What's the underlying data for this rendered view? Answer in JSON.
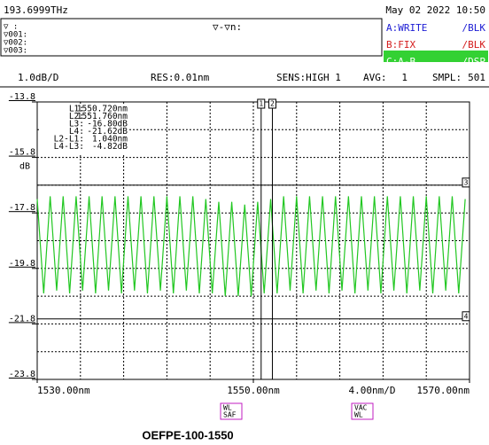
{
  "header": {
    "frequency": "193.6999THz",
    "datetime": "May 02 2022 10:50",
    "marker_rows": [
      "▽  :",
      "▽001:",
      "▽002:",
      "▽003:"
    ],
    "delta": "▽-▽n:",
    "traces": [
      {
        "name": "A:WRITE",
        "mode": "/BLK"
      },
      {
        "name": "B:FIX",
        "mode": "/BLK"
      },
      {
        "name": "C:A-B",
        "mode": "/DSP"
      }
    ],
    "settings": [
      "1.0dB/D",
      "RES:0.01nm",
      "SENS:HIGH 1",
      "AVG:",
      "1",
      "SMPL:",
      "501"
    ]
  },
  "chart_data": {
    "type": "line",
    "color": "#22c722",
    "x": [
      1530,
      1530.6,
      1531.2,
      1531.8,
      1532.4,
      1533,
      1533.6,
      1534.2,
      1534.8,
      1535.4,
      1536,
      1536.6,
      1537.2,
      1537.8,
      1538.4,
      1539,
      1539.6,
      1540.2,
      1540.8,
      1541.4,
      1542,
      1542.6,
      1543.2,
      1543.8,
      1544.4,
      1545,
      1545.6,
      1546.2,
      1546.8,
      1547.4,
      1548,
      1548.6,
      1549.2,
      1549.8,
      1550.4,
      1551,
      1551.6,
      1552.2,
      1552.8,
      1553.4,
      1554,
      1554.6,
      1555.2,
      1555.8,
      1556.4,
      1557,
      1557.6,
      1558.2,
      1558.8,
      1559.4,
      1560,
      1560.6,
      1561.2,
      1561.8,
      1562.4,
      1563,
      1563.6,
      1564.2,
      1564.8,
      1565.4,
      1566,
      1566.6,
      1567.2,
      1567.8,
      1568.4,
      1569,
      1569.6
    ],
    "values": [
      -17.3,
      -20.7,
      -17.2,
      -20.6,
      -17.2,
      -20.7,
      -17.2,
      -20.6,
      -17.2,
      -20.7,
      -17.2,
      -20.6,
      -17.2,
      -20.7,
      -17.2,
      -20.6,
      -17.2,
      -20.7,
      -17.2,
      -20.6,
      -17.2,
      -20.7,
      -17.2,
      -20.6,
      -17.2,
      -20.7,
      -17.3,
      -20.7,
      -17.4,
      -20.8,
      -17.4,
      -20.8,
      -17.5,
      -20.8,
      -17.4,
      -20.7,
      -17.3,
      -20.7,
      -17.2,
      -20.6,
      -17.2,
      -20.7,
      -17.2,
      -20.6,
      -17.2,
      -20.7,
      -17.2,
      -20.6,
      -17.2,
      -20.7,
      -17.2,
      -20.6,
      -17.2,
      -20.7,
      -17.2,
      -20.6,
      -17.2,
      -20.7,
      -17.2,
      -20.6,
      -17.2,
      -20.7,
      -17.2,
      -20.6,
      -17.2,
      -20.7,
      -17.3
    ],
    "xlim": [
      1530,
      1570
    ],
    "ylim": [
      -23.8,
      -13.8
    ],
    "xticks": [
      {
        "value": 1530,
        "label": "1530.00nm"
      },
      {
        "value": 1550,
        "label": "1550.00nm"
      },
      {
        "value": 1570,
        "label": "1570.00nm"
      }
    ],
    "xgrid": [
      1534,
      1538,
      1542,
      1546,
      1550,
      1554,
      1558,
      1562,
      1566
    ],
    "yticks": [
      -13.8,
      -15.8,
      -17.8,
      -19.8,
      -21.8,
      -23.8
    ],
    "ygrid": [
      -14.8,
      -15.8,
      -16.8,
      -17.8,
      -18.8,
      -19.8,
      -20.8,
      -21.8,
      -22.8
    ],
    "y_unit": "dB",
    "x_scale": "4.00nm/D",
    "markers": [
      {
        "label": "1",
        "x": 1550.72
      },
      {
        "label": "2",
        "x": 1551.76
      },
      {
        "label": "3",
        "y": -16.8
      },
      {
        "label": "4",
        "y": -21.62
      }
    ],
    "marker_table": [
      [
        "L1:",
        "1550.720nm"
      ],
      [
        "L2:",
        "1551.760nm"
      ],
      [
        "L3:",
        "-16.80dB"
      ],
      [
        "L4:",
        "-21.62dB"
      ],
      [
        "L2-L1:",
        "1.040nm"
      ],
      [
        "L4-L3:",
        "-4.82dB"
      ]
    ]
  },
  "footer": {
    "buttons": [
      [
        "WL",
        "SAF"
      ],
      [
        "VAC",
        "WL"
      ]
    ],
    "caption": "OEFPE-100-1550"
  }
}
